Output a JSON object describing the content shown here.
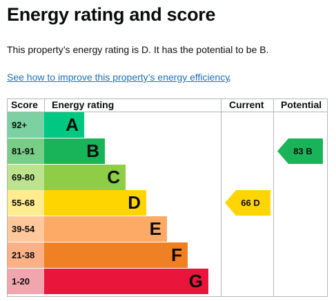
{
  "title": "Energy rating and score",
  "summary": "This property’s energy rating is D. It has the potential to be B.",
  "improve_link": "See how to improve this property’s energy efficiency",
  "improve_link_suffix": ".",
  "table": {
    "headers": {
      "score": "Score",
      "rating": "Energy rating",
      "current": "Current",
      "potential": "Potential"
    },
    "bands": [
      {
        "score": "92+",
        "letter": "A",
        "score_bg": "#7bd1a2",
        "bar_color": "#00c781"
      },
      {
        "score": "81-91",
        "letter": "B",
        "score_bg": "#78cd87",
        "bar_color": "#19b459"
      },
      {
        "score": "69-80",
        "letter": "C",
        "score_bg": "#bde38f",
        "bar_color": "#8dce46"
      },
      {
        "score": "55-68",
        "letter": "D",
        "score_bg": "#ffec8f",
        "bar_color": "#ffd500"
      },
      {
        "score": "39-54",
        "letter": "E",
        "score_bg": "#fec89b",
        "bar_color": "#fcaa65"
      },
      {
        "score": "21-38",
        "letter": "F",
        "score_bg": "#fbb085",
        "bar_color": "#ef8023"
      },
      {
        "score": "1-20",
        "letter": "G",
        "score_bg": "#f1a6ae",
        "bar_color": "#e9153b"
      }
    ],
    "current": {
      "label": "66 D",
      "band": "D",
      "color": "#ffd500"
    },
    "potential": {
      "label": "83 B",
      "band": "B",
      "color": "#19b459"
    }
  }
}
